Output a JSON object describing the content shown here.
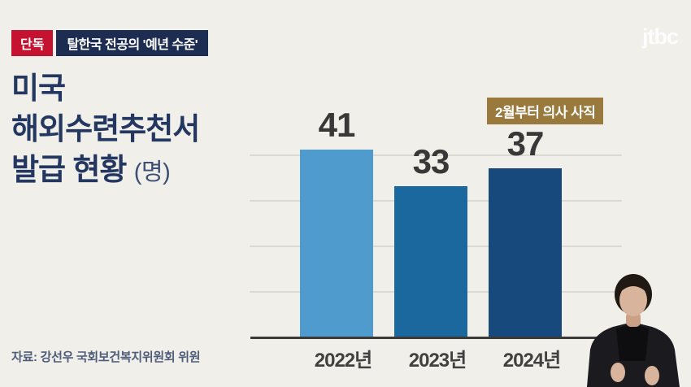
{
  "broadcast": {
    "channel": "jtbc",
    "exclusive_badge": "단독",
    "headline": "탈한국 전공의 '예년 수준'",
    "source": "자료: 강선우 국회보건복지위원회 위원"
  },
  "title": {
    "line1": "미국",
    "line2": "해외수련추천서",
    "line3": "발급 현황 ",
    "unit": "(명)"
  },
  "chart_data": {
    "type": "bar",
    "title": "미국 해외수련추천서 발급 현황 (명)",
    "categories": [
      "2022년",
      "2023년",
      "2024년"
    ],
    "values": [
      41,
      33,
      37
    ],
    "bar_colors": [
      "#4f9bce",
      "#1b689f",
      "#17497c"
    ],
    "ylim": [
      0,
      45
    ],
    "gridlines": [
      10,
      20,
      30,
      40
    ],
    "grid": true,
    "legend": false,
    "annotation": {
      "text": "2월부터 의사 사직",
      "target": "2024년"
    }
  },
  "colors": {
    "background": "#f1efea",
    "exclusive_badge_bg": "#c41230",
    "headline_badge_bg": "#1d2c51",
    "title_text": "#233760",
    "annotation_bg": "#99793c",
    "axis_line": "#3a3a3a",
    "gridline": "#dcd9d3"
  }
}
